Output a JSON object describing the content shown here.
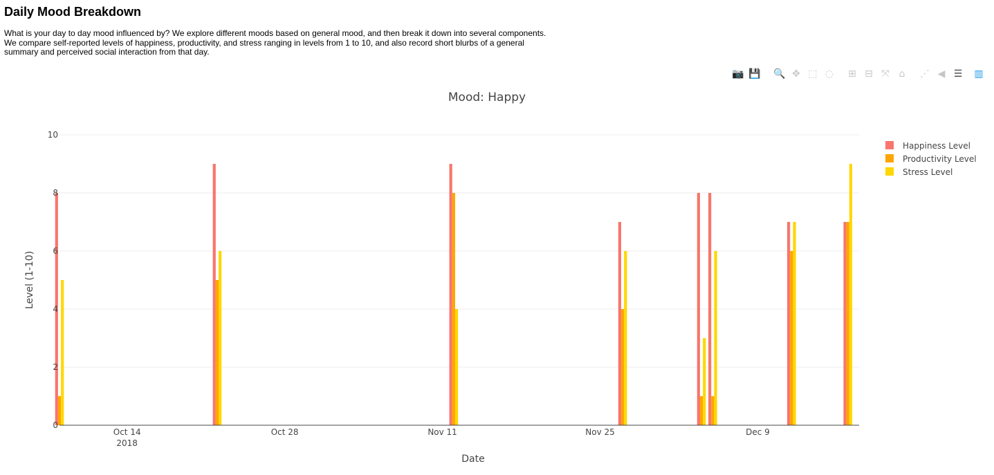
{
  "page": {
    "title": "Daily Mood Breakdown",
    "description": "What is your day to day mood influenced by? We explore different moods based on general mood, and then break it down into several components. We compare self-reported levels of happiness, productivity, and stress ranging in levels from 1 to 10, and also record short blurbs of a general summary and perceived social interaction from that day."
  },
  "modebar": [
    {
      "name": "camera-icon",
      "glyph": "📷",
      "active": false
    },
    {
      "name": "save-icon",
      "glyph": "💾",
      "active": false
    },
    {
      "name": "zoom-icon",
      "glyph": "🔍",
      "active": true
    },
    {
      "name": "pan-icon",
      "glyph": "✥",
      "active": false
    },
    {
      "name": "box-select-icon",
      "glyph": "⬚",
      "active": false
    },
    {
      "name": "lasso-select-icon",
      "glyph": "◌",
      "active": false
    },
    {
      "name": "zoom-in-icon",
      "glyph": "⊞",
      "active": false
    },
    {
      "name": "zoom-out-icon",
      "glyph": "⊟",
      "active": false
    },
    {
      "name": "autoscale-icon",
      "glyph": "⤧",
      "active": false
    },
    {
      "name": "home-icon",
      "glyph": "⌂",
      "active": false
    },
    {
      "name": "spike-lines-icon",
      "glyph": "⋰",
      "active": false
    },
    {
      "name": "hover-closest-icon",
      "glyph": "◀",
      "active": false
    },
    {
      "name": "hover-compare-icon",
      "glyph": "☰",
      "active": true
    },
    {
      "name": "plotly-logo-icon",
      "glyph": "▥",
      "active": false,
      "brand": true
    }
  ],
  "chart_data": {
    "type": "bar",
    "title": "Mood: Happy",
    "xlabel": "Date",
    "ylabel": "Level (1-10)",
    "ylim": [
      0,
      10
    ],
    "yticks": [
      0,
      2,
      4,
      6,
      8,
      10
    ],
    "xlim": [
      "2018-10-08",
      "2018-12-15"
    ],
    "xticks": [
      {
        "date": "2018-10-14",
        "label": "Oct 14",
        "sublabel": "2018"
      },
      {
        "date": "2018-10-28",
        "label": "Oct 28",
        "sublabel": ""
      },
      {
        "date": "2018-11-11",
        "label": "Nov 11",
        "sublabel": ""
      },
      {
        "date": "2018-11-25",
        "label": "Nov 25",
        "sublabel": ""
      },
      {
        "date": "2018-12-09",
        "label": "Dec 9",
        "sublabel": ""
      }
    ],
    "grid": true,
    "legend_position": "top-right",
    "x": [
      "2018-10-08",
      "2018-10-22",
      "2018-11-12",
      "2018-11-27",
      "2018-12-04",
      "2018-12-05",
      "2018-12-12",
      "2018-12-17"
    ],
    "series": [
      {
        "name": "Happiness Level",
        "color": "#f8766d",
        "values": [
          8,
          9,
          9,
          7,
          8,
          8,
          7,
          7
        ]
      },
      {
        "name": "Productivity Level",
        "color": "#ffa500",
        "values": [
          1,
          5,
          8,
          4,
          1,
          1,
          6,
          7
        ]
      },
      {
        "name": "Stress Level",
        "color": "#ffd700",
        "values": [
          5,
          6,
          4,
          6,
          3,
          6,
          7,
          9
        ]
      }
    ]
  }
}
